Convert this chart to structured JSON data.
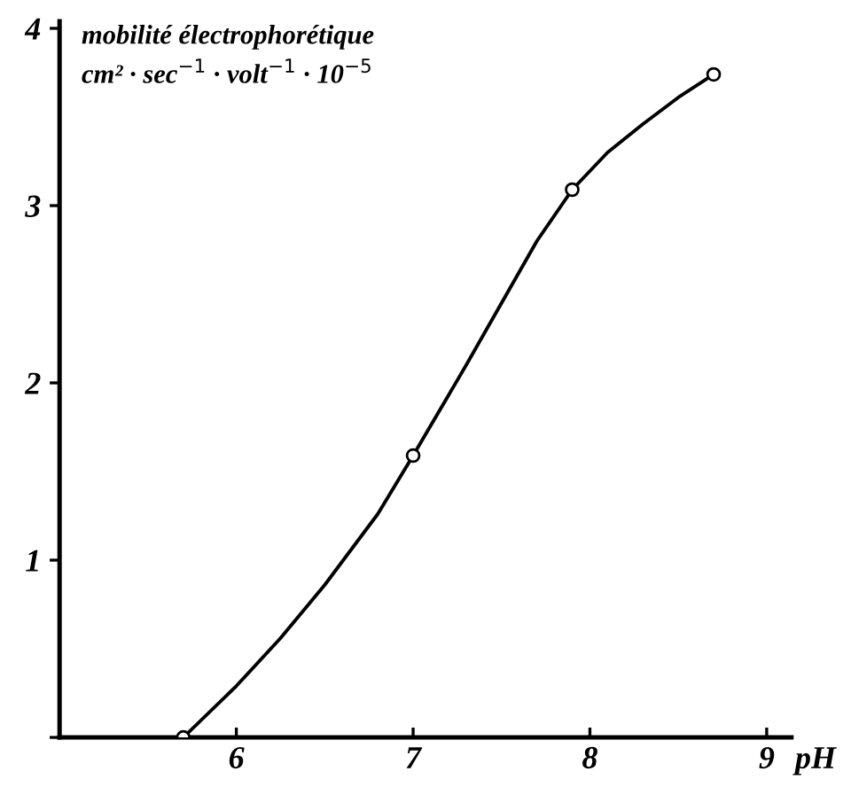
{
  "chart_data": {
    "type": "scatter",
    "xlabel": "pH",
    "ylabel": "mobilité électrophorétique\ncm² · sec$^{−1}$ · volt$^{−1}$ · 10$^{−5}$",
    "x": [
      5.7,
      7.0,
      7.9,
      8.7
    ],
    "series": [
      {
        "type": "line",
        "color": "#000000",
        "marker": "none",
        "line_style": "solid",
        "x": [
          5.7,
          6.0,
          6.25,
          6.5,
          6.8,
          7.0,
          7.1,
          7.3,
          7.5,
          7.7,
          7.9,
          8.1,
          8.3,
          8.5,
          8.7
        ],
        "values": [
          0,
          0.29,
          0.56,
          0.86,
          1.26,
          1.59,
          1.76,
          2.1,
          2.45,
          2.8,
          3.09,
          3.3,
          3.46,
          3.61,
          3.74
        ]
      },
      {
        "color": "#000000",
        "marker": "circle",
        "values": [
          0,
          1.59,
          3.09,
          3.74
        ]
      }
    ],
    "xlim": [
      5.0,
      9.14
    ],
    "ylim": [
      0,
      4.04
    ],
    "xticks": [
      6,
      7,
      8,
      9
    ],
    "yticks": [
      {
        "value": 0,
        "label": null
      },
      1,
      2,
      3,
      4
    ],
    "grid": false,
    "legend": false
  }
}
